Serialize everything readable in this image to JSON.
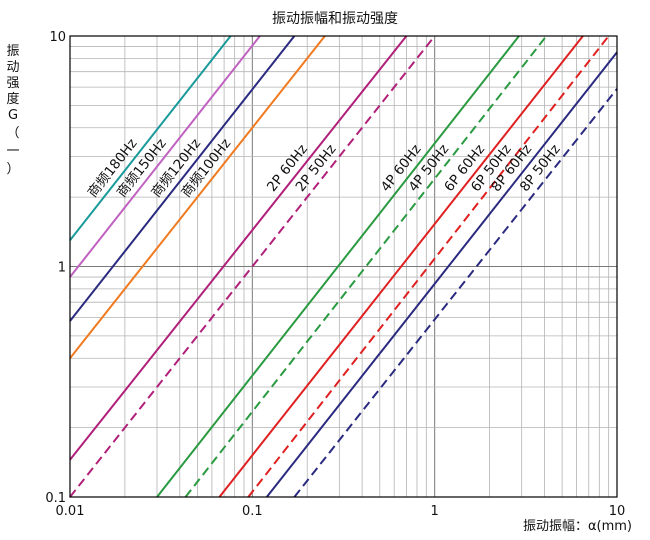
{
  "chart_data": {
    "type": "line",
    "title": "振动振幅和振动强度",
    "xlabel": "振动振幅：α(mm)",
    "ylabel_chars": [
      "振",
      "动",
      "强",
      "度",
      "G",
      "（",
      "一",
      "）"
    ],
    "x_scale": "log",
    "y_scale": "log",
    "xlim": [
      0.01,
      10
    ],
    "ylim": [
      0.1,
      10
    ],
    "x_ticks": [
      "0.01",
      "0.1",
      "1",
      "10"
    ],
    "y_ticks": [
      "0.1",
      "1",
      "10"
    ],
    "grid": true,
    "series": [
      {
        "name": "商频180Hz",
        "color": "#1a9a9a",
        "dash": false,
        "x": [
          0.01,
          0.076
        ],
        "y": [
          1.3,
          10
        ]
      },
      {
        "name": "商频150Hz",
        "color": "#c060c0",
        "dash": false,
        "x": [
          0.01,
          0.11
        ],
        "y": [
          0.9,
          10
        ]
      },
      {
        "name": "商频120Hz",
        "color": "#2a2a80",
        "dash": false,
        "x": [
          0.01,
          0.17
        ],
        "y": [
          0.58,
          10
        ]
      },
      {
        "name": "商频100Hz",
        "color": "#f07a20",
        "dash": false,
        "x": [
          0.01,
          0.25
        ],
        "y": [
          0.4,
          10
        ]
      },
      {
        "name": "2P 60Hz",
        "color": "#b0207a",
        "dash": false,
        "x": [
          0.01,
          0.7
        ],
        "y": [
          0.145,
          10
        ]
      },
      {
        "name": "2P 50Hz",
        "color": "#b0207a",
        "dash": true,
        "x": [
          0.01,
          1.0
        ],
        "y": [
          0.1,
          10
        ]
      },
      {
        "name": "4P 60Hz",
        "color": "#2a9a40",
        "dash": false,
        "x": [
          0.03,
          2.9
        ],
        "y": [
          0.1,
          10
        ]
      },
      {
        "name": "4P 50Hz",
        "color": "#2a9a40",
        "dash": true,
        "x": [
          0.043,
          4.1
        ],
        "y": [
          0.1,
          10
        ]
      },
      {
        "name": "6P 60Hz",
        "color": "#e02020",
        "dash": false,
        "x": [
          0.066,
          6.5
        ],
        "y": [
          0.1,
          10
        ]
      },
      {
        "name": "6P 50Hz",
        "color": "#e02020",
        "dash": true,
        "x": [
          0.095,
          9.0
        ],
        "y": [
          0.1,
          10
        ]
      },
      {
        "name": "8P 60Hz",
        "color": "#2a2a80",
        "dash": false,
        "x": [
          0.12,
          10
        ],
        "y": [
          0.1,
          8.5
        ]
      },
      {
        "name": "8P 50Hz",
        "color": "#2a2a80",
        "dash": true,
        "x": [
          0.17,
          10
        ],
        "y": [
          0.1,
          5.9
        ]
      }
    ]
  }
}
